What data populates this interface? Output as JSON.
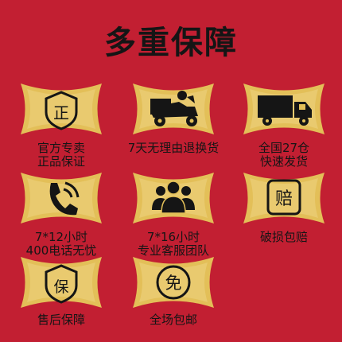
{
  "title": "多重保障",
  "colors": {
    "background": "#c21f32",
    "gold": "#e3bf58",
    "ink": "#151515"
  },
  "items": [
    {
      "icon": "zheng-shield-icon",
      "glyph": "正",
      "lines": [
        "官方专卖",
        "正品保证"
      ]
    },
    {
      "icon": "delivery-scooter-icon",
      "lines": [
        "7天无理由退换货"
      ]
    },
    {
      "icon": "truck-icon",
      "lines": [
        "全国27仓",
        "快速发货"
      ]
    },
    {
      "icon": "phone-icon",
      "lines": [
        "7*12小时",
        "400电话无忧"
      ]
    },
    {
      "icon": "team-icon",
      "lines": [
        "7*16小时",
        "专业客服团队"
      ]
    },
    {
      "icon": "pei-badge-icon",
      "glyph": "赔",
      "lines": [
        "破损包赔"
      ]
    },
    {
      "icon": "bao-shield-icon",
      "glyph": "保",
      "lines": [
        "售后保障"
      ]
    },
    {
      "icon": "mian-circle-icon",
      "glyph": "免",
      "lines": [
        "全场包邮"
      ]
    }
  ]
}
